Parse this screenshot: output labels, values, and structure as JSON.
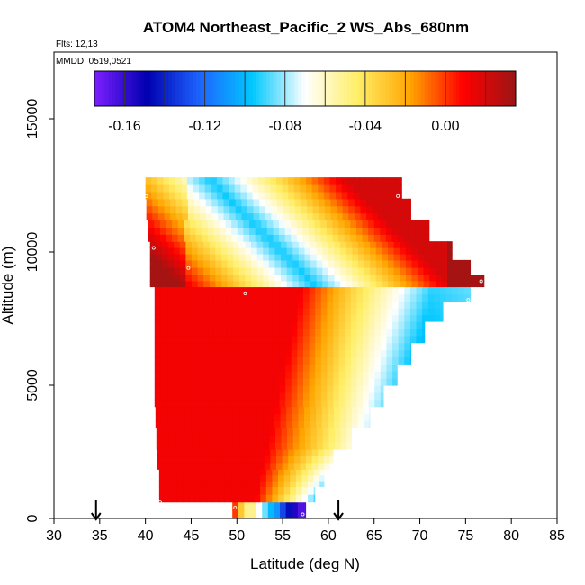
{
  "chart_data": {
    "type": "heatmap",
    "title": "ATOM4 Northeast_Pacific_2 WS_Abs_680nm",
    "flights_label": "Flts: 12,13",
    "dates_label": "MMDD: 0519,0521",
    "xlabel": "Latitude (deg N)",
    "ylabel": "Altitude (m)",
    "xlim": [
      30,
      85
    ],
    "ylim": [
      0,
      17500
    ],
    "x_ticks": [
      "30",
      "35",
      "40",
      "45",
      "50",
      "55",
      "60",
      "65",
      "70",
      "75",
      "80",
      "85"
    ],
    "y_ticks": [
      "0",
      "5000",
      "10000",
      "15000"
    ],
    "colorbar": {
      "range": [
        -0.175,
        0.035
      ],
      "ticks": [
        "-0.16",
        "-0.12",
        "-0.08",
        "-0.04",
        "0.00"
      ],
      "tick_values": [
        -0.16,
        -0.12,
        -0.08,
        -0.04,
        0.0
      ],
      "step": 0.02,
      "colors": [
        "#7c1fff",
        "#0000b0",
        "#1e64ff",
        "#00c8ff",
        "#ffffff",
        "#ffee66",
        "#ffa500",
        "#ff0000",
        "#9b1515"
      ]
    },
    "field": {
      "lat_step": 0.65,
      "alt_step": 340,
      "rows": [
        {
          "alt": 340,
          "lat_min": 49.5,
          "lat_max": 57.5
        },
        {
          "alt": 900,
          "lat_min": 41.5,
          "lat_max": 58.5
        },
        {
          "alt": 1500,
          "lat_min": 41.5,
          "lat_max": 59.5
        },
        {
          "alt": 2200,
          "lat_min": 41.3,
          "lat_max": 60.5
        },
        {
          "alt": 3000,
          "lat_min": 41.2,
          "lat_max": 62.5
        },
        {
          "alt": 3800,
          "lat_min": 41.1,
          "lat_max": 64.5
        },
        {
          "alt": 4600,
          "lat_min": 41.0,
          "lat_max": 66.0
        },
        {
          "alt": 5400,
          "lat_min": 41.0,
          "lat_max": 67.5
        },
        {
          "alt": 6200,
          "lat_min": 41.0,
          "lat_max": 69.0
        },
        {
          "alt": 7000,
          "lat_min": 41.0,
          "lat_max": 70.5
        },
        {
          "alt": 7800,
          "lat_min": 41.0,
          "lat_max": 72.5
        },
        {
          "alt": 8500,
          "lat_min": 41.0,
          "lat_max": 75.5
        },
        {
          "alt": 8900,
          "lat_min": 40.5,
          "lat_max": 77.0
        },
        {
          "alt": 9400,
          "lat_min": 40.5,
          "lat_max": 75.5
        },
        {
          "alt": 10000,
          "lat_min": 40.5,
          "lat_max": 73.5
        },
        {
          "alt": 10800,
          "lat_min": 40.3,
          "lat_max": 71.0
        },
        {
          "alt": 11600,
          "lat_min": 40.1,
          "lat_max": 69.0
        },
        {
          "alt": 12400,
          "lat_min": 40.0,
          "lat_max": 68.0
        }
      ],
      "surface_values": {
        "lat_start": 49.5,
        "lat_step": 0.65,
        "values": [
          0.01,
          0.0,
          -0.03,
          -0.05,
          -0.07,
          -0.085,
          -0.1,
          -0.11,
          -0.13,
          -0.145,
          -0.155,
          -0.165
        ]
      }
    },
    "sample_points": [
      {
        "lat": 40.1,
        "alt": 12100
      },
      {
        "lat": 40.9,
        "alt": 10150
      },
      {
        "lat": 44.7,
        "alt": 9400
      },
      {
        "lat": 50.9,
        "alt": 8450
      },
      {
        "lat": 67.6,
        "alt": 12100
      },
      {
        "lat": 76.7,
        "alt": 8900
      },
      {
        "lat": 75.3,
        "alt": 8200
      },
      {
        "lat": 41.6,
        "alt": 600
      },
      {
        "lat": 49.8,
        "alt": 400
      },
      {
        "lat": 57.2,
        "alt": 150
      }
    ],
    "markers": [
      {
        "lat": 34.6,
        "label": ""
      },
      {
        "lat": 61.1,
        "label": ""
      }
    ]
  }
}
